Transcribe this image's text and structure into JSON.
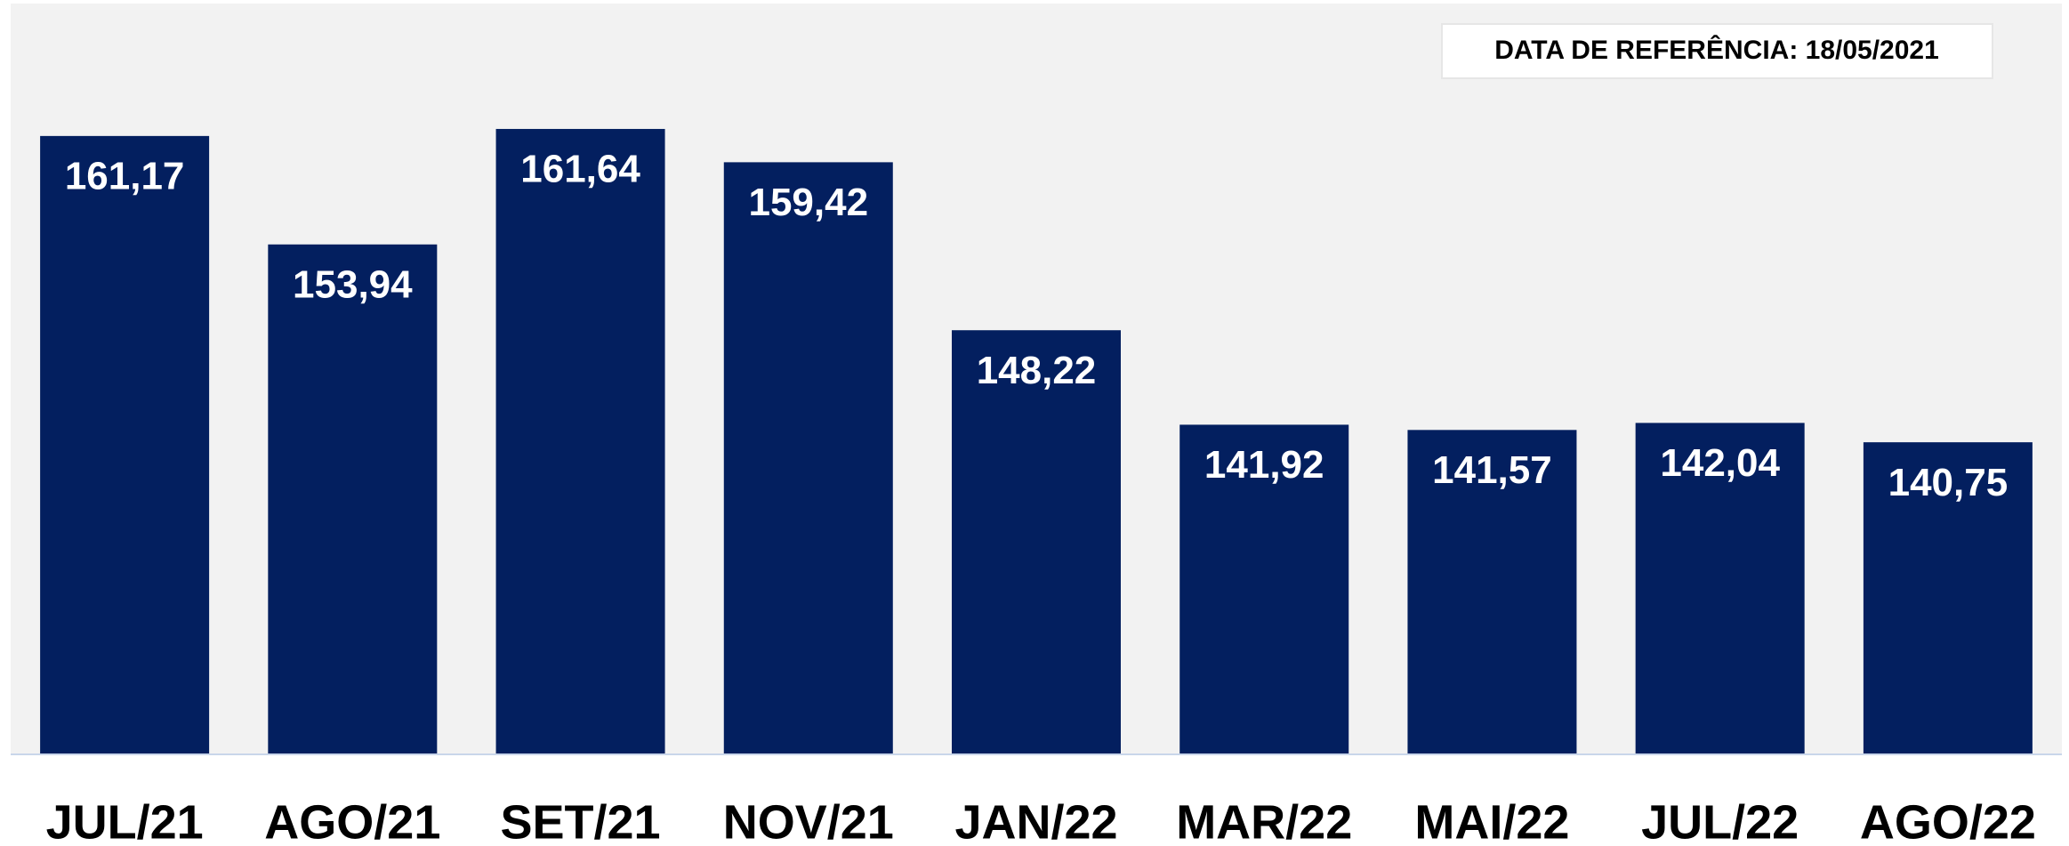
{
  "chart_data": {
    "type": "bar",
    "annotation": "DATA DE REFERÊNCIA: 18/05/2021",
    "categories": [
      "JUL/21",
      "AGO/21",
      "SET/21",
      "NOV/21",
      "JAN/22",
      "MAR/22",
      "MAI/22",
      "JUL/22",
      "AGO/22"
    ],
    "values": [
      161.17,
      153.94,
      161.64,
      159.42,
      148.22,
      141.92,
      141.57,
      142.04,
      140.75
    ],
    "value_labels": [
      "161,17",
      "153,94",
      "161,64",
      "159,42",
      "148,22",
      "141,92",
      "141,57",
      "142,04",
      "140,75"
    ],
    "color": "#031f5f",
    "ylim": [
      120,
      170
    ]
  }
}
